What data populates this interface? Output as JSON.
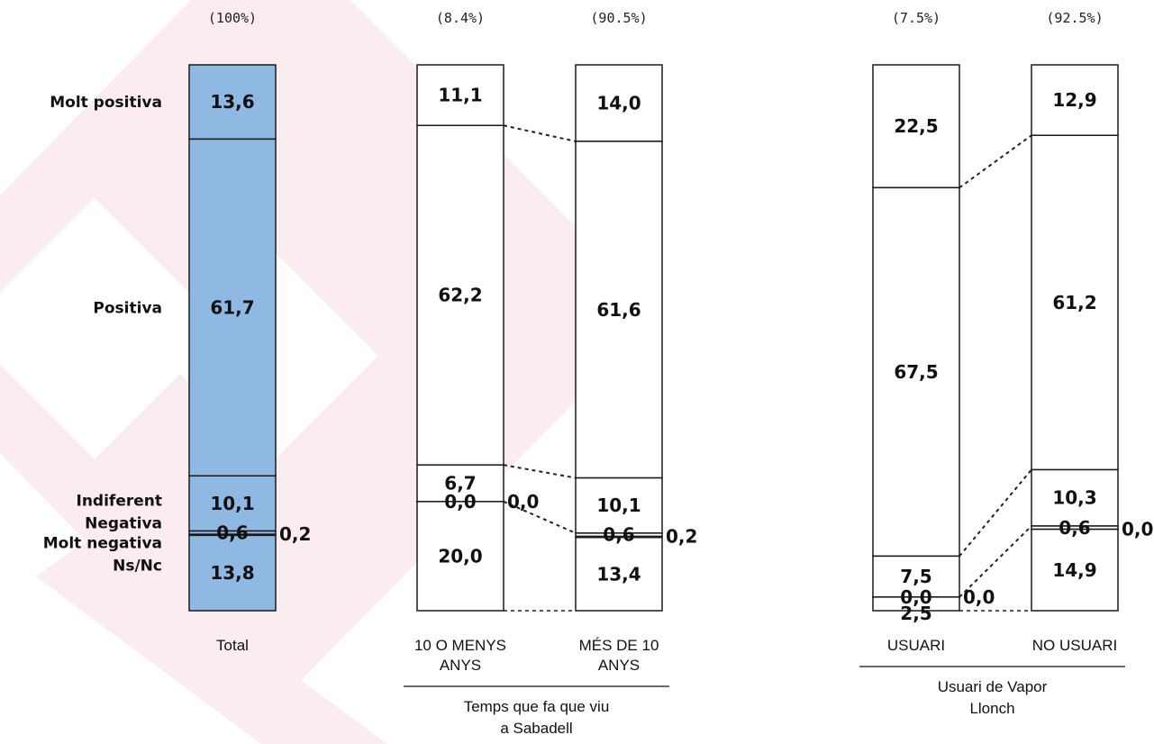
{
  "chart_data": {
    "type": "stacked-bar",
    "legend_order": [
      "Molt positiva",
      "Positiva",
      "Indiferent",
      "Negativa",
      "Molt negativa",
      "Ns/Nc"
    ],
    "row_labels": [
      "Molt positiva",
      "Positiva",
      "Indiferent",
      "Negativa",
      "Molt negativa",
      "Ns/Nc"
    ],
    "bars": [
      {
        "category": "Total",
        "share": "(100%)",
        "filled": true,
        "values": [
          "13,6",
          "61,7",
          "10,1",
          "0,6",
          "0,2",
          "13,8"
        ]
      },
      {
        "category": "10 O MENYS ANYS",
        "share": "(8.4%)",
        "filled": false,
        "values": [
          "11,1",
          "62,2",
          "6,7",
          "0,0",
          "0,0",
          "20,0"
        ]
      },
      {
        "category": "MÉS DE 10 ANYS",
        "share": "(90.5%)",
        "filled": false,
        "values": [
          "14,0",
          "61,6",
          "10,1",
          "0,6",
          "0,2",
          "13,4"
        ]
      },
      {
        "category": "USUARI",
        "share": "(7.5%)",
        "filled": false,
        "values": [
          "22,5",
          "67,5",
          "7,5",
          "0,0",
          "0,0",
          "2,5"
        ]
      },
      {
        "category": "NO USUARI",
        "share": "(92.5%)",
        "filled": false,
        "values": [
          "12,9",
          "61,2",
          "10,3",
          "0,6",
          "0,0",
          "14,9"
        ]
      }
    ],
    "groups": [
      {
        "label": "Temps que fa que viu a Sabadell",
        "bars": [
          1,
          2
        ]
      },
      {
        "label": "Usuari de Vapor Llonch",
        "bars": [
          3,
          4
        ]
      }
    ],
    "ylim": [
      0,
      100
    ],
    "colors": {
      "filled": "#8fb8e2",
      "bar_outline": "#1a1a1a",
      "background_mark": "#fbecef"
    }
  }
}
